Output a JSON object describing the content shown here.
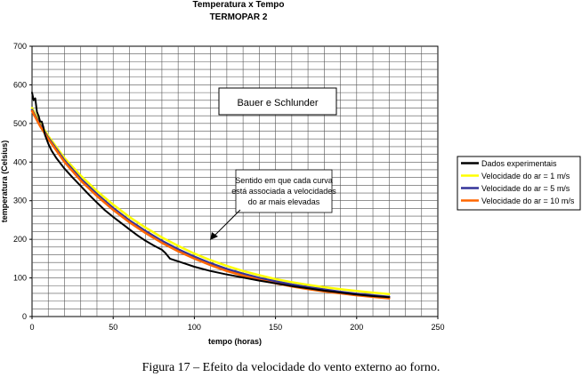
{
  "chart_data": {
    "type": "line",
    "title": "Temperatura x Tempo",
    "subtitle": "TERMOPAR 2",
    "xlabel": "tempo (horas)",
    "ylabel": "temperatura (Celsius)",
    "xlim": [
      0,
      250
    ],
    "ylim": [
      0,
      700
    ],
    "x_ticks": [
      "0",
      "50",
      "100",
      "150",
      "200",
      "250"
    ],
    "y_ticks": [
      "0",
      "100",
      "200",
      "300",
      "400",
      "500",
      "600",
      "700"
    ],
    "grid": true,
    "legend_position": "right",
    "annotation_box": "Bauer e Schlunder",
    "arrow_note": [
      "Sentido em que cada curva",
      "está associada a velocidades",
      "do ar mais elevadas"
    ],
    "series": [
      {
        "name": "Dados experimentais",
        "color": "#000000",
        "points": [
          [
            0,
            580
          ],
          [
            1,
            560
          ],
          [
            2,
            565
          ],
          [
            3,
            530
          ],
          [
            4,
            520
          ],
          [
            5,
            505
          ],
          [
            6,
            505
          ],
          [
            7,
            490
          ],
          [
            8,
            470
          ],
          [
            10,
            448
          ],
          [
            12,
            430
          ],
          [
            15,
            410
          ],
          [
            20,
            383
          ],
          [
            25,
            360
          ],
          [
            30,
            338
          ],
          [
            35,
            316
          ],
          [
            40,
            295
          ],
          [
            45,
            275
          ],
          [
            50,
            258
          ],
          [
            55,
            242
          ],
          [
            60,
            226
          ],
          [
            65,
            210
          ],
          [
            70,
            196
          ],
          [
            75,
            184
          ],
          [
            80,
            173
          ],
          [
            82,
            165
          ],
          [
            85,
            150
          ],
          [
            90,
            143
          ],
          [
            95,
            136
          ],
          [
            100,
            129
          ],
          [
            110,
            118
          ],
          [
            120,
            109
          ],
          [
            130,
            101
          ],
          [
            140,
            93
          ],
          [
            150,
            86
          ],
          [
            160,
            79
          ],
          [
            170,
            73
          ],
          [
            180,
            67
          ],
          [
            190,
            62
          ],
          [
            200,
            57
          ],
          [
            210,
            53
          ],
          [
            220,
            50
          ]
        ]
      },
      {
        "name": "Velocidade do ar = 1 m/s",
        "color": "#ffff00",
        "points": [
          [
            0,
            540
          ],
          [
            5,
            500
          ],
          [
            10,
            468
          ],
          [
            20,
            410
          ],
          [
            30,
            365
          ],
          [
            40,
            325
          ],
          [
            50,
            290
          ],
          [
            60,
            258
          ],
          [
            70,
            230
          ],
          [
            80,
            205
          ],
          [
            90,
            183
          ],
          [
            100,
            163
          ],
          [
            110,
            146
          ],
          [
            120,
            131
          ],
          [
            130,
            118
          ],
          [
            140,
            107
          ],
          [
            150,
            97
          ],
          [
            160,
            89
          ],
          [
            170,
            82
          ],
          [
            180,
            76
          ],
          [
            190,
            71
          ],
          [
            200,
            66
          ],
          [
            210,
            62
          ],
          [
            220,
            58
          ]
        ]
      },
      {
        "name": "Velocidade do ar = 5 m/s",
        "color": "#333399",
        "points": [
          [
            0,
            535
          ],
          [
            5,
            496
          ],
          [
            10,
            463
          ],
          [
            20,
            404
          ],
          [
            30,
            357
          ],
          [
            40,
            317
          ],
          [
            50,
            281
          ],
          [
            60,
            249
          ],
          [
            70,
            221
          ],
          [
            80,
            196
          ],
          [
            90,
            174
          ],
          [
            100,
            155
          ],
          [
            110,
            138
          ],
          [
            120,
            123
          ],
          [
            130,
            111
          ],
          [
            140,
            100
          ],
          [
            150,
            91
          ],
          [
            160,
            83
          ],
          [
            170,
            76
          ],
          [
            180,
            70
          ],
          [
            190,
            64
          ],
          [
            200,
            59
          ],
          [
            210,
            55
          ],
          [
            220,
            51
          ]
        ]
      },
      {
        "name": "Velocidade do ar = 10 m/s",
        "color": "#ff6600",
        "points": [
          [
            0,
            532
          ],
          [
            5,
            493
          ],
          [
            10,
            460
          ],
          [
            20,
            400
          ],
          [
            30,
            352
          ],
          [
            40,
            312
          ],
          [
            50,
            276
          ],
          [
            60,
            244
          ],
          [
            70,
            216
          ],
          [
            80,
            191
          ],
          [
            90,
            169
          ],
          [
            100,
            150
          ],
          [
            110,
            133
          ],
          [
            120,
            118
          ],
          [
            130,
            106
          ],
          [
            140,
            95
          ],
          [
            150,
            86
          ],
          [
            160,
            78
          ],
          [
            170,
            71
          ],
          [
            180,
            65
          ],
          [
            190,
            60
          ],
          [
            200,
            55
          ],
          [
            210,
            51
          ],
          [
            220,
            47
          ]
        ]
      }
    ]
  },
  "caption": "Figura 17 – Efeito da velocidade do vento externo ao forno."
}
